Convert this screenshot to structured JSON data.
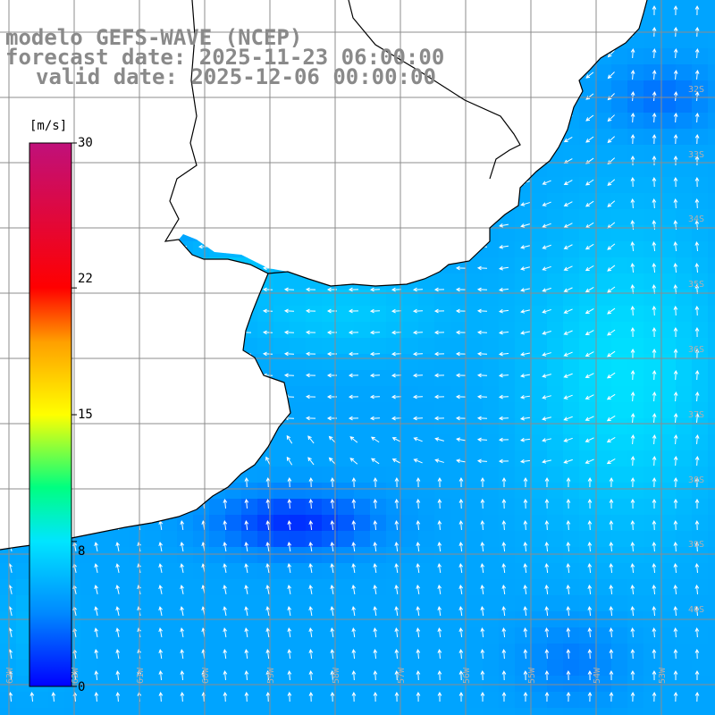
{
  "title": {
    "model": "modelo GEFS-WAVE (NCEP)",
    "forecast": "forecast date: 2025-11-23 06:00:00",
    "valid": "valid date: 2025-12-06 00:00:00"
  },
  "colorbar": {
    "units": "[m/s]",
    "ticks": [
      "30",
      "22",
      "15",
      "8",
      "0"
    ],
    "tick_values": [
      30,
      22,
      15,
      8,
      0
    ],
    "range": [
      0,
      30
    ],
    "stops": [
      {
        "v": 0,
        "c": "#0000ff"
      },
      {
        "v": 4,
        "c": "#0088ff"
      },
      {
        "v": 8,
        "c": "#00e5ff"
      },
      {
        "v": 11,
        "c": "#00ff80"
      },
      {
        "v": 15,
        "c": "#ffff00"
      },
      {
        "v": 19,
        "c": "#ffa000"
      },
      {
        "v": 22,
        "c": "#ff0000"
      },
      {
        "v": 30,
        "c": "#c0107a"
      }
    ]
  },
  "lat_labels": [
    "32S",
    "33S",
    "34S",
    "35S",
    "36S",
    "37S",
    "38S",
    "39S",
    "40S"
  ],
  "lon_labels": [
    "63W",
    "62W",
    "61W",
    "60W",
    "59W",
    "58W",
    "57W",
    "56W",
    "55W",
    "54W",
    "53W"
  ],
  "colors": {
    "land": "#ffffff",
    "grid": "#8c8c8c",
    "coast": "#000000",
    "arrow": "#ffffff",
    "title": "#8a8a8a"
  }
}
